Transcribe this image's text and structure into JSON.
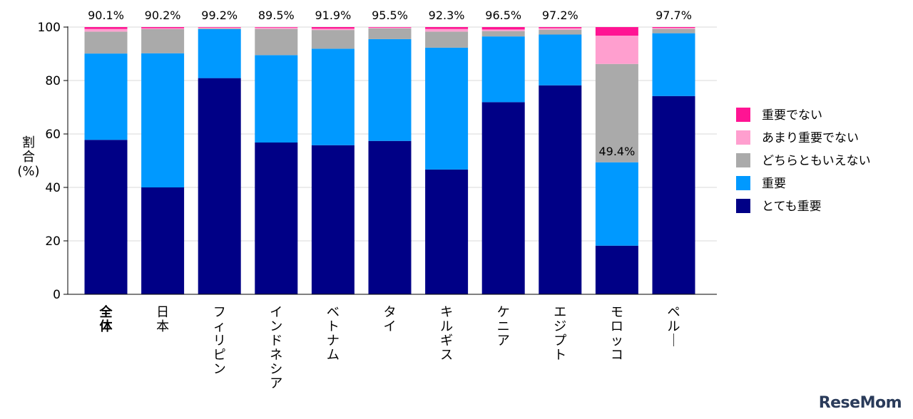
{
  "chart_data": {
    "type": "bar",
    "stacked": true,
    "ylabel": "割合(%)",
    "ylabel_lines": [
      "割",
      "合",
      "(%)"
    ],
    "ylim": [
      0,
      100
    ],
    "yticks": [
      0,
      20,
      40,
      60,
      80,
      100
    ],
    "grid": true,
    "legend_position": "right",
    "categories": [
      "全体",
      "日本",
      "フィリピン",
      "インドネシア",
      "ベトナム",
      "タイ",
      "キルギス",
      "ケニア",
      "エジプト",
      "モロッコ",
      "ペルー"
    ],
    "category_bold": [
      true,
      false,
      false,
      false,
      false,
      false,
      false,
      false,
      false,
      false,
      false
    ],
    "series": [
      {
        "name": "とても重要",
        "color": "#000086",
        "values": [
          57.8,
          40.0,
          80.9,
          56.8,
          55.8,
          57.4,
          46.7,
          71.9,
          78.2,
          18.2,
          74.2
        ]
      },
      {
        "name": "重要",
        "color": "#0099ff",
        "values": [
          32.3,
          50.2,
          18.3,
          32.7,
          36.1,
          38.1,
          45.6,
          24.6,
          19.0,
          31.2,
          23.5
        ]
      },
      {
        "name": "どちらともいえない",
        "color": "#aaaaaa",
        "values": [
          8.2,
          9.0,
          0.3,
          9.8,
          7.0,
          4.0,
          6.0,
          2.0,
          1.8,
          36.8,
          1.6
        ]
      },
      {
        "name": "あまり重要でない",
        "color": "#ff9fcf",
        "values": [
          1.0,
          0.4,
          0.3,
          0.5,
          0.5,
          0.3,
          1.0,
          0.6,
          0.6,
          10.6,
          0.4
        ]
      },
      {
        "name": "重要でない",
        "color": "#ff1493",
        "values": [
          0.7,
          0.4,
          0.2,
          0.2,
          0.6,
          0.2,
          0.7,
          0.9,
          0.4,
          3.2,
          0.3
        ]
      }
    ],
    "legend_order": [
      "重要でない",
      "あまり重要でない",
      "どちらともいえない",
      "重要",
      "とても重要"
    ],
    "annotations": [
      "90.1%",
      "90.2%",
      "99.2%",
      "89.5%",
      "91.9%",
      "95.5%",
      "92.3%",
      "96.5%",
      "97.2%",
      "49.4%",
      "97.7%"
    ],
    "annotation_inside": [
      false,
      false,
      false,
      false,
      false,
      false,
      false,
      false,
      false,
      true,
      false
    ]
  },
  "watermark": "ReseMom"
}
